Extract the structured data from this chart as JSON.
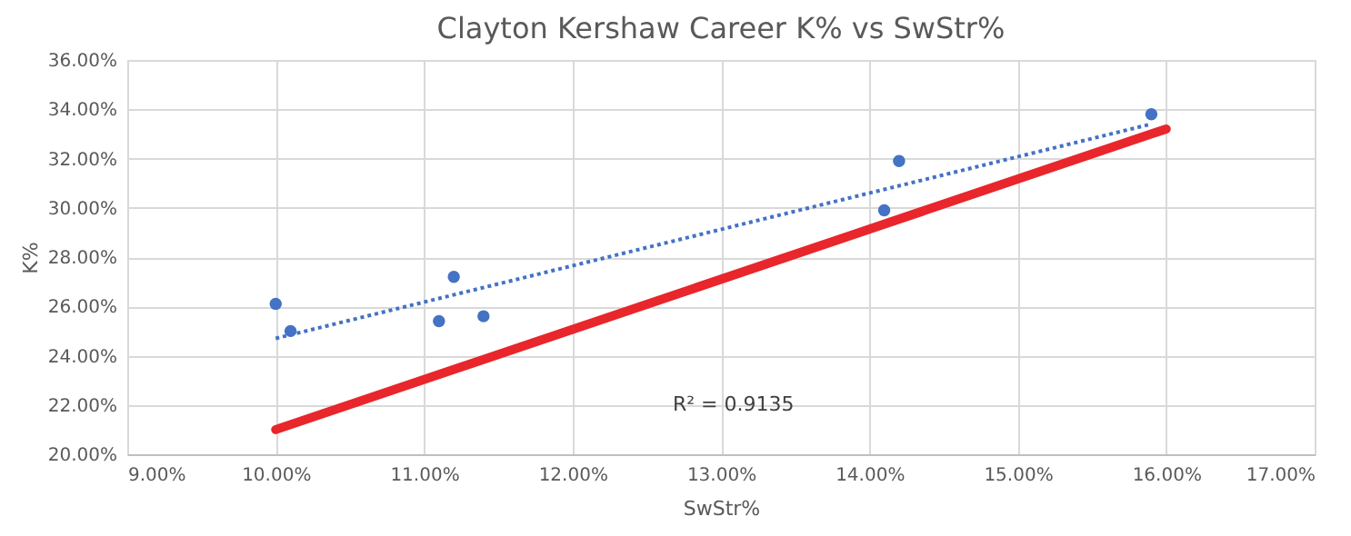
{
  "chart_data": {
    "type": "scatter",
    "title": "Clayton Kershaw Career K% vs SwStr%",
    "xlabel": "SwStr%",
    "ylabel": "K%",
    "series": [
      {
        "color": "#4472c4",
        "marker": "circle",
        "x": [
          10.0,
          10.1,
          11.1,
          11.2,
          11.4,
          14.1,
          14.2,
          15.9
        ],
        "values": [
          26.1,
          25.0,
          25.4,
          27.2,
          25.6,
          29.9,
          31.9,
          33.8
        ]
      },
      {
        "type": "line",
        "color": "#4472c4",
        "line_style": "dotted",
        "x": [
          10.0,
          15.9
        ],
        "values": [
          24.7,
          33.4
        ]
      },
      {
        "type": "line",
        "color": "#e8262b",
        "line_style": "solid",
        "x": [
          10.0,
          16.0
        ],
        "values": [
          21.0,
          33.2
        ]
      }
    ],
    "xlim": [
      9,
      17
    ],
    "ylim": [
      20,
      36
    ],
    "xticks": [
      {
        "value": 9,
        "label": "9.00%"
      },
      {
        "value": 10,
        "label": "10.00%"
      },
      {
        "value": 11,
        "label": "11.00%"
      },
      {
        "value": 12,
        "label": "12.00%"
      },
      {
        "value": 13,
        "label": "13.00%"
      },
      {
        "value": 14,
        "label": "14.00%"
      },
      {
        "value": 15,
        "label": "15.00%"
      },
      {
        "value": 16,
        "label": "16.00%"
      },
      {
        "value": 17,
        "label": "17.00%"
      }
    ],
    "yticks": [
      {
        "value": 20,
        "label": "20.00%"
      },
      {
        "value": 22,
        "label": "22.00%"
      },
      {
        "value": 24,
        "label": "24.00%"
      },
      {
        "value": 26,
        "label": "26.00%"
      },
      {
        "value": 28,
        "label": "28.00%"
      },
      {
        "value": 30,
        "label": "30.00%"
      },
      {
        "value": 32,
        "label": "32.00%"
      },
      {
        "value": 34,
        "label": "34.00%"
      },
      {
        "value": 36,
        "label": "36.00%"
      }
    ],
    "grid": true,
    "annotations": [
      "R² = 0.9135"
    ]
  }
}
